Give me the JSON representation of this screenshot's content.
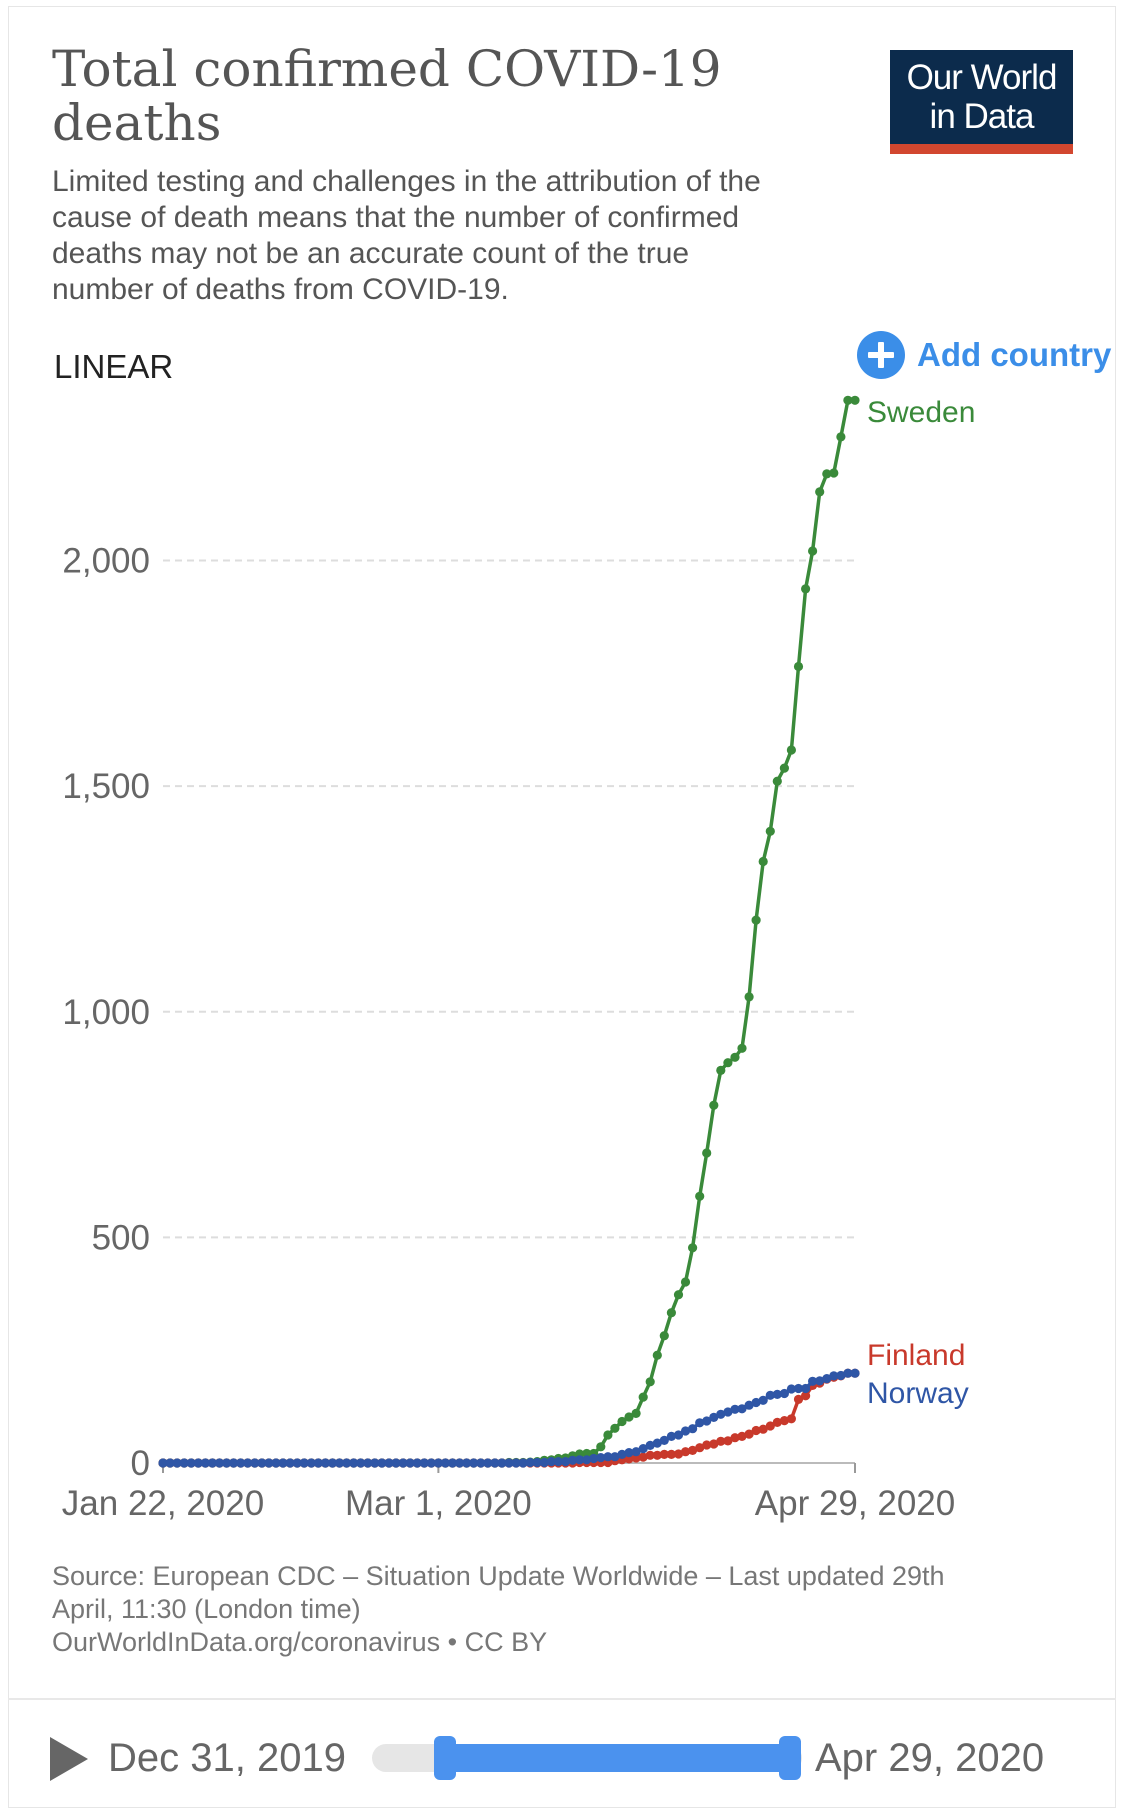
{
  "header": {
    "title": "Total confirmed COVID-19 deaths",
    "subtitle": "Limited testing and challenges in the attribution of the cause of death means that the number of confirmed deaths may not be an accurate count of the true number of deaths from COVID-19.",
    "logo_line1": "Our World",
    "logo_line2": "in Data"
  },
  "controls": {
    "scale_label": "LINEAR",
    "add_country_label": "Add country"
  },
  "colors": {
    "sweden": "#3a8a3a",
    "finland": "#c8392b",
    "norway": "#2f56a6",
    "accent": "#3b8ee8",
    "logo_bg": "#0c2b4c",
    "logo_bar": "#d2472f"
  },
  "chart_data": {
    "type": "line",
    "title": "Total confirmed COVID-19 deaths",
    "xlabel": "",
    "ylabel": "",
    "x_start": "Jan 22, 2020",
    "x_end": "Apr 29, 2020",
    "x_tick_labels": [
      "Jan 22, 2020",
      "Mar 1, 2020",
      "Apr 29, 2020"
    ],
    "y_ticks": [
      0,
      500,
      1000,
      1500,
      2000
    ],
    "y_tick_labels": [
      "0",
      "500",
      "1,000",
      "1,500",
      "2,000"
    ],
    "ylim": [
      0,
      2400
    ],
    "grid": "horizontal dashed",
    "legend": "direct labels at line ends",
    "series": [
      {
        "name": "Sweden",
        "color": "#3a8a3a",
        "points": [
          [
            "Jan 22, 2020",
            0
          ],
          [
            "Mar 10, 2020",
            0
          ],
          [
            "Mar 11, 2020",
            1
          ],
          [
            "Mar 12, 2020",
            1
          ],
          [
            "Mar 13, 2020",
            1
          ],
          [
            "Mar 14, 2020",
            2
          ],
          [
            "Mar 15, 2020",
            3
          ],
          [
            "Mar 16, 2020",
            6
          ],
          [
            "Mar 17, 2020",
            7
          ],
          [
            "Mar 18, 2020",
            10
          ],
          [
            "Mar 19, 2020",
            11
          ],
          [
            "Mar 20, 2020",
            16
          ],
          [
            "Mar 21, 2020",
            20
          ],
          [
            "Mar 22, 2020",
            21
          ],
          [
            "Mar 23, 2020",
            21
          ],
          [
            "Mar 24, 2020",
            36
          ],
          [
            "Mar 25, 2020",
            62
          ],
          [
            "Mar 26, 2020",
            77
          ],
          [
            "Mar 27, 2020",
            92
          ],
          [
            "Mar 28, 2020",
            102
          ],
          [
            "Mar 29, 2020",
            110
          ],
          [
            "Mar 30, 2020",
            146
          ],
          [
            "Mar 31, 2020",
            180
          ],
          [
            "Apr 1, 2020",
            239
          ],
          [
            "Apr 2, 2020",
            282
          ],
          [
            "Apr 3, 2020",
            333
          ],
          [
            "Apr 4, 2020",
            373
          ],
          [
            "Apr 5, 2020",
            401
          ],
          [
            "Apr 6, 2020",
            477
          ],
          [
            "Apr 7, 2020",
            591
          ],
          [
            "Apr 8, 2020",
            687
          ],
          [
            "Apr 9, 2020",
            793
          ],
          [
            "Apr 10, 2020",
            870
          ],
          [
            "Apr 11, 2020",
            887
          ],
          [
            "Apr 12, 2020",
            899
          ],
          [
            "Apr 13, 2020",
            919
          ],
          [
            "Apr 14, 2020",
            1033
          ],
          [
            "Apr 15, 2020",
            1203
          ],
          [
            "Apr 16, 2020",
            1333
          ],
          [
            "Apr 17, 2020",
            1400
          ],
          [
            "Apr 18, 2020",
            1511
          ],
          [
            "Apr 19, 2020",
            1540
          ],
          [
            "Apr 20, 2020",
            1580
          ],
          [
            "Apr 21, 2020",
            1765
          ],
          [
            "Apr 22, 2020",
            1937
          ],
          [
            "Apr 23, 2020",
            2021
          ],
          [
            "Apr 24, 2020",
            2152
          ],
          [
            "Apr 25, 2020",
            2192
          ],
          [
            "Apr 26, 2020",
            2194
          ],
          [
            "Apr 27, 2020",
            2274
          ],
          [
            "Apr 28, 2020",
            2355
          ],
          [
            "Apr 29, 2020",
            2355
          ]
        ]
      },
      {
        "name": "Finland",
        "color": "#c8392b",
        "points": [
          [
            "Jan 22, 2020",
            0
          ],
          [
            "Mar 20, 2020",
            0
          ],
          [
            "Mar 21, 2020",
            1
          ],
          [
            "Mar 22, 2020",
            1
          ],
          [
            "Mar 23, 2020",
            1
          ],
          [
            "Mar 24, 2020",
            1
          ],
          [
            "Mar 25, 2020",
            1
          ],
          [
            "Mar 26, 2020",
            5
          ],
          [
            "Mar 27, 2020",
            7
          ],
          [
            "Mar 28, 2020",
            9
          ],
          [
            "Mar 29, 2020",
            11
          ],
          [
            "Mar 30, 2020",
            13
          ],
          [
            "Mar 31, 2020",
            17
          ],
          [
            "Apr 1, 2020",
            17
          ],
          [
            "Apr 2, 2020",
            19
          ],
          [
            "Apr 3, 2020",
            19
          ],
          [
            "Apr 4, 2020",
            20
          ],
          [
            "Apr 5, 2020",
            25
          ],
          [
            "Apr 6, 2020",
            28
          ],
          [
            "Apr 7, 2020",
            34
          ],
          [
            "Apr 8, 2020",
            40
          ],
          [
            "Apr 9, 2020",
            42
          ],
          [
            "Apr 10, 2020",
            48
          ],
          [
            "Apr 11, 2020",
            49
          ],
          [
            "Apr 12, 2020",
            56
          ],
          [
            "Apr 13, 2020",
            59
          ],
          [
            "Apr 14, 2020",
            64
          ],
          [
            "Apr 15, 2020",
            72
          ],
          [
            "Apr 16, 2020",
            75
          ],
          [
            "Apr 17, 2020",
            82
          ],
          [
            "Apr 18, 2020",
            90
          ],
          [
            "Apr 19, 2020",
            94
          ],
          [
            "Apr 20, 2020",
            98
          ],
          [
            "Apr 21, 2020",
            141
          ],
          [
            "Apr 22, 2020",
            149
          ],
          [
            "Apr 23, 2020",
            172
          ],
          [
            "Apr 24, 2020",
            177
          ],
          [
            "Apr 25, 2020",
            186
          ],
          [
            "Apr 26, 2020",
            190
          ],
          [
            "Apr 27, 2020",
            193
          ],
          [
            "Apr 28, 2020",
            199
          ],
          [
            "Apr 29, 2020",
            199
          ]
        ]
      },
      {
        "name": "Norway",
        "color": "#2f56a6",
        "points": [
          [
            "Jan 22, 2020",
            0
          ],
          [
            "Mar 13, 2020",
            0
          ],
          [
            "Mar 14, 2020",
            1
          ],
          [
            "Mar 15, 2020",
            1
          ],
          [
            "Mar 16, 2020",
            1
          ],
          [
            "Mar 17, 2020",
            3
          ],
          [
            "Mar 18, 2020",
            3
          ],
          [
            "Mar 19, 2020",
            3
          ],
          [
            "Mar 20, 2020",
            6
          ],
          [
            "Mar 21, 2020",
            7
          ],
          [
            "Mar 22, 2020",
            7
          ],
          [
            "Mar 23, 2020",
            10
          ],
          [
            "Mar 24, 2020",
            12
          ],
          [
            "Mar 25, 2020",
            14
          ],
          [
            "Mar 26, 2020",
            14
          ],
          [
            "Mar 27, 2020",
            19
          ],
          [
            "Mar 28, 2020",
            23
          ],
          [
            "Mar 29, 2020",
            25
          ],
          [
            "Mar 30, 2020",
            32
          ],
          [
            "Mar 31, 2020",
            39
          ],
          [
            "Apr 1, 2020",
            44
          ],
          [
            "Apr 2, 2020",
            50
          ],
          [
            "Apr 3, 2020",
            59
          ],
          [
            "Apr 4, 2020",
            62
          ],
          [
            "Apr 5, 2020",
            71
          ],
          [
            "Apr 6, 2020",
            76
          ],
          [
            "Apr 7, 2020",
            89
          ],
          [
            "Apr 8, 2020",
            93
          ],
          [
            "Apr 9, 2020",
            101
          ],
          [
            "Apr 10, 2020",
            108
          ],
          [
            "Apr 11, 2020",
            113
          ],
          [
            "Apr 12, 2020",
            119
          ],
          [
            "Apr 13, 2020",
            120
          ],
          [
            "Apr 14, 2020",
            128
          ],
          [
            "Apr 15, 2020",
            134
          ],
          [
            "Apr 16, 2020",
            139
          ],
          [
            "Apr 17, 2020",
            150
          ],
          [
            "Apr 18, 2020",
            152
          ],
          [
            "Apr 19, 2020",
            154
          ],
          [
            "Apr 20, 2020",
            164
          ],
          [
            "Apr 21, 2020",
            165
          ],
          [
            "Apr 22, 2020",
            165
          ],
          [
            "Apr 23, 2020",
            181
          ],
          [
            "Apr 24, 2020",
            182
          ],
          [
            "Apr 25, 2020",
            187
          ],
          [
            "Apr 26, 2020",
            193
          ],
          [
            "Apr 27, 2020",
            194
          ],
          [
            "Apr 28, 2020",
            199
          ],
          [
            "Apr 29, 2020",
            199
          ]
        ]
      }
    ]
  },
  "footer": {
    "source_line1": "Source: European CDC – Situation Update Worldwide – Last updated 29th",
    "source_line2": "April, 11:30 (London time)",
    "source_line3": "OurWorldInData.org/coronavirus • CC BY"
  },
  "timeline": {
    "start_label": "Dec 31, 2019",
    "end_label": "Apr 29, 2020",
    "selected_start": "Jan 22, 2020",
    "selected_end": "Apr 29, 2020"
  }
}
